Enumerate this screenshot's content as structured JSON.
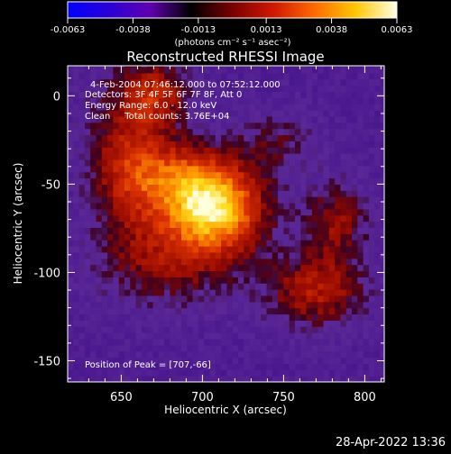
{
  "colorbar": {
    "tick_labels": [
      "-0.0063",
      "-0.0038",
      "-0.0013",
      "0.0013",
      "0.0038",
      "0.0063"
    ],
    "range": [
      -0.0063,
      0.0063
    ],
    "units_label": "(photons cm⁻² s⁻¹ asec⁻²)",
    "colors": [
      "#0000ff",
      "#2a00d8",
      "#5f00b0",
      "#000000",
      "#7a0000",
      "#d01800",
      "#ff6a00",
      "#ffc800",
      "#ffffe6"
    ]
  },
  "chart_data": {
    "type": "heatmap",
    "title": "Reconstructed RHESSI Image",
    "xlabel": "Heliocentric X (arcsec)",
    "ylabel": "Heliocentric Y (arcsec)",
    "xlim": [
      617,
      812
    ],
    "ylim": [
      -162,
      17
    ],
    "xticks": [
      650,
      700,
      750,
      800
    ],
    "yticks": [
      0,
      -50,
      -100,
      -150
    ],
    "grid": false,
    "annotations": {
      "time_range": "4-Feb-2004 07:46:12.000 to 07:52:12.000",
      "detectors": "Detectors: 3F 4F 5F 6F 7F 8F, Att 0",
      "energy": "Energy Range: 6.0 - 12.0 keV",
      "clean": "Clean     Total counts: 3.76E+04",
      "peak": "Position of Peak = [707,-66]"
    },
    "peak": [
      707,
      -66
    ],
    "sources": [
      {
        "x": 707,
        "y": -66,
        "sx": 22,
        "sy": 16,
        "amp": 1.0
      },
      {
        "x": 690,
        "y": -45,
        "sx": 25,
        "sy": 14,
        "amp": 0.55
      },
      {
        "x": 655,
        "y": -35,
        "sx": 18,
        "sy": 32,
        "amp": 0.5
      },
      {
        "x": 672,
        "y": 2,
        "sx": 14,
        "sy": 12,
        "amp": 0.45
      },
      {
        "x": 770,
        "y": -110,
        "sx": 22,
        "sy": 15,
        "amp": 0.5
      },
      {
        "x": 783,
        "y": -70,
        "sx": 14,
        "sy": 16,
        "amp": 0.4
      },
      {
        "x": 680,
        "y": -95,
        "sx": 30,
        "sy": 18,
        "amp": 0.35
      },
      {
        "x": 745,
        "y": -25,
        "sx": 18,
        "sy": 12,
        "amp": 0.25
      }
    ]
  },
  "footer": {
    "timestamp": "28-Apr-2022 13:36"
  }
}
